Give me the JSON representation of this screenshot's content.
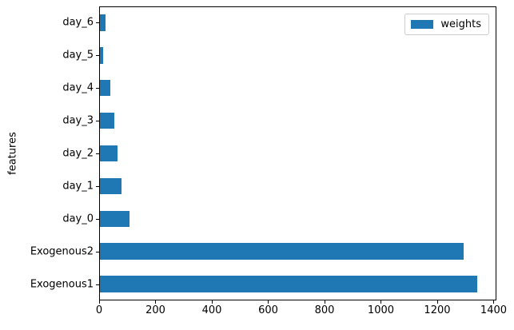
{
  "figure": {
    "background": "#ffffff",
    "text_color": "#000000"
  },
  "chart_data": {
    "type": "bar",
    "orientation": "horizontal",
    "title": "",
    "xlabel": "",
    "ylabel": "features",
    "categories_top_to_bottom": [
      "day_6",
      "day_5",
      "day_4",
      "day_3",
      "day_2",
      "day_1",
      "day_0",
      "Exogenous2",
      "Exogenous1"
    ],
    "series": [
      {
        "name": "weights",
        "color": "#1f77b4",
        "values_top_to_bottom": [
          20,
          11,
          37,
          51,
          61,
          76,
          104,
          1292,
          1340
        ]
      }
    ],
    "xlim": [
      0,
      1410
    ],
    "x_ticks": [
      0,
      200,
      400,
      600,
      800,
      1000,
      1200,
      1400
    ],
    "grid": false,
    "legend": {
      "position": "upper right",
      "label": "weights",
      "swatch_color": "#1f77b4"
    }
  }
}
